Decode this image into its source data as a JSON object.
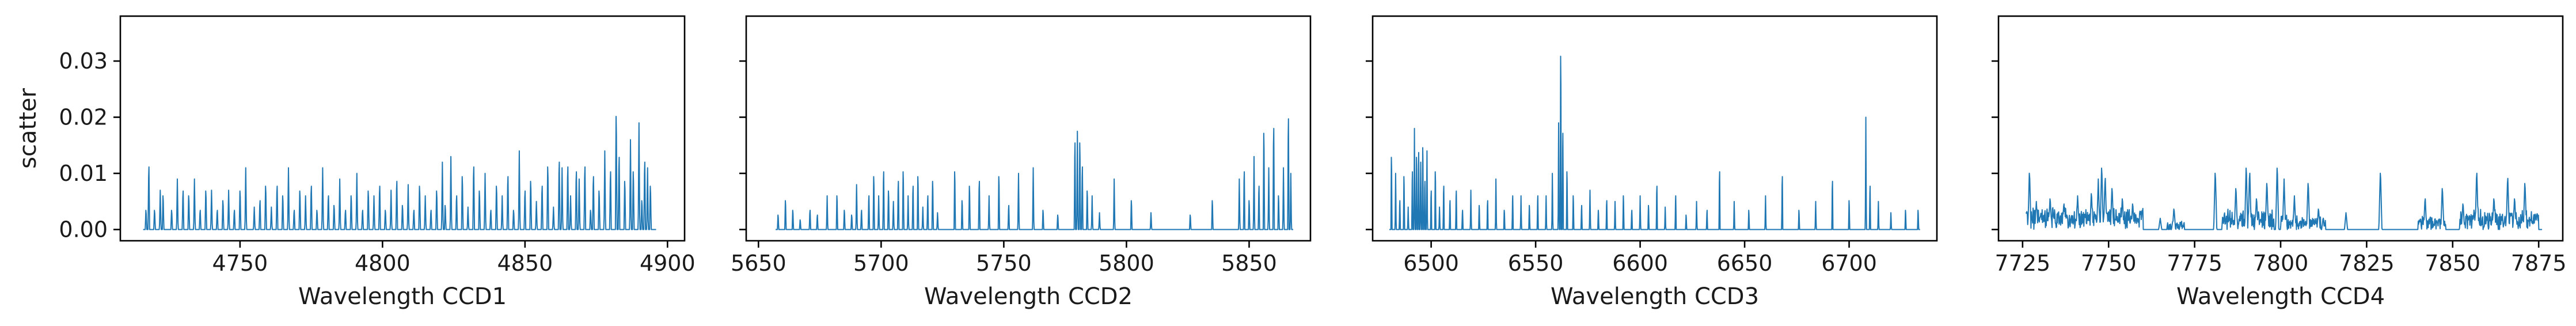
{
  "chart_data": {
    "type": "line",
    "shared_y": true,
    "ylabel": "scatter",
    "ylim": [
      -0.002,
      0.038
    ],
    "yticks": [
      0.0,
      0.01,
      0.02,
      0.03
    ],
    "ytick_labels": [
      "0.00",
      "0.01",
      "0.02",
      "0.03"
    ],
    "line_color": "#1f77b4",
    "grid": false,
    "panels": [
      {
        "xlabel": "Wavelength CCD1",
        "xlim": [
          4708,
          4906
        ],
        "xticks": [
          4750,
          4800,
          4850,
          4900
        ],
        "xtick_labels": [
          "4750",
          "4800",
          "4850",
          "4900"
        ],
        "x_range": [
          4716,
          4896
        ],
        "baseline": 0.0,
        "peaks": [
          [
            4717,
            0.004
          ],
          [
            4718,
            0.013
          ],
          [
            4720,
            0.004
          ],
          [
            4722,
            0.007
          ],
          [
            4723,
            0.007
          ],
          [
            4726,
            0.004
          ],
          [
            4728,
            0.009
          ],
          [
            4730,
            0.008
          ],
          [
            4732,
            0.007
          ],
          [
            4734,
            0.009
          ],
          [
            4736,
            0.004
          ],
          [
            4738,
            0.008
          ],
          [
            4740,
            0.007
          ],
          [
            4742,
            0.004
          ],
          [
            4744,
            0.006
          ],
          [
            4746,
            0.007
          ],
          [
            4748,
            0.004
          ],
          [
            4750,
            0.008
          ],
          [
            4752,
            0.011
          ],
          [
            4755,
            0.004
          ],
          [
            4757,
            0.006
          ],
          [
            4759,
            0.009
          ],
          [
            4761,
            0.004
          ],
          [
            4763,
            0.009
          ],
          [
            4765,
            0.007
          ],
          [
            4767,
            0.011
          ],
          [
            4769,
            0.004
          ],
          [
            4771,
            0.008
          ],
          [
            4773,
            0.006
          ],
          [
            4775,
            0.009
          ],
          [
            4777,
            0.004
          ],
          [
            4779,
            0.011
          ],
          [
            4781,
            0.007
          ],
          [
            4783,
            0.005
          ],
          [
            4785,
            0.009
          ],
          [
            4787,
            0.004
          ],
          [
            4789,
            0.007
          ],
          [
            4791,
            0.01
          ],
          [
            4793,
            0.004
          ],
          [
            4795,
            0.008
          ],
          [
            4797,
            0.006
          ],
          [
            4799,
            0.009
          ],
          [
            4801,
            0.004
          ],
          [
            4803,
            0.007
          ],
          [
            4805,
            0.01
          ],
          [
            4807,
            0.005
          ],
          [
            4809,
            0.008
          ],
          [
            4811,
            0.004
          ],
          [
            4813,
            0.009
          ],
          [
            4815,
            0.006
          ],
          [
            4817,
            0.004
          ],
          [
            4819,
            0.008
          ],
          [
            4821,
            0.012
          ],
          [
            4822,
            0.005
          ],
          [
            4824,
            0.013
          ],
          [
            4826,
            0.007
          ],
          [
            4828,
            0.011
          ],
          [
            4830,
            0.004
          ],
          [
            4832,
            0.013
          ],
          [
            4834,
            0.008
          ],
          [
            4836,
            0.01
          ],
          [
            4838,
            0.004
          ],
          [
            4840,
            0.009
          ],
          [
            4842,
            0.006
          ],
          [
            4844,
            0.011
          ],
          [
            4846,
            0.004
          ],
          [
            4848,
            0.014
          ],
          [
            4850,
            0.008
          ],
          [
            4852,
            0.01
          ],
          [
            4854,
            0.005
          ],
          [
            4856,
            0.009
          ],
          [
            4858,
            0.013
          ],
          [
            4860,
            0.004
          ],
          [
            4862,
            0.014
          ],
          [
            4863,
            0.011
          ],
          [
            4865,
            0.013
          ],
          [
            4866,
            0.006
          ],
          [
            4868,
            0.012
          ],
          [
            4869,
            0.009
          ],
          [
            4871,
            0.013
          ],
          [
            4873,
            0.004
          ],
          [
            4874,
            0.011
          ],
          [
            4876,
            0.008
          ],
          [
            4878,
            0.014
          ],
          [
            4880,
            0.012
          ],
          [
            4882,
            0.0235
          ],
          [
            4883,
            0.015
          ],
          [
            4885,
            0.01
          ],
          [
            4887,
            0.016
          ],
          [
            4888,
            0.012
          ],
          [
            4890,
            0.019
          ],
          [
            4891,
            0.006
          ],
          [
            4892,
            0.014
          ],
          [
            4893,
            0.011
          ],
          [
            4894,
            0.009
          ]
        ]
      },
      {
        "xlabel": "Wavelength CCD2",
        "xlim": [
          5645,
          5875
        ],
        "xticks": [
          5650,
          5700,
          5750,
          5800,
          5850
        ],
        "xtick_labels": [
          "5650",
          "5700",
          "5750",
          "5800",
          "5850"
        ],
        "x_range": [
          5657,
          5868
        ],
        "baseline": 0.0,
        "peaks": [
          [
            5658,
            0.003
          ],
          [
            5661,
            0.006
          ],
          [
            5664,
            0.004
          ],
          [
            5667,
            0.002
          ],
          [
            5671,
            0.004
          ],
          [
            5674,
            0.003
          ],
          [
            5678,
            0.006
          ],
          [
            5682,
            0.007
          ],
          [
            5685,
            0.004
          ],
          [
            5688,
            0.003
          ],
          [
            5690,
            0.008
          ],
          [
            5692,
            0.004
          ],
          [
            5695,
            0.007
          ],
          [
            5697,
            0.011
          ],
          [
            5699,
            0.006
          ],
          [
            5701,
            0.012
          ],
          [
            5703,
            0.008
          ],
          [
            5705,
            0.005
          ],
          [
            5707,
            0.01
          ],
          [
            5709,
            0.012
          ],
          [
            5711,
            0.006
          ],
          [
            5713,
            0.009
          ],
          [
            5715,
            0.011
          ],
          [
            5717,
            0.004
          ],
          [
            5719,
            0.007
          ],
          [
            5721,
            0.01
          ],
          [
            5723,
            0.003
          ],
          [
            5730,
            0.012
          ],
          [
            5733,
            0.006
          ],
          [
            5736,
            0.009
          ],
          [
            5740,
            0.01
          ],
          [
            5744,
            0.006
          ],
          [
            5748,
            0.011
          ],
          [
            5752,
            0.005
          ],
          [
            5756,
            0.01
          ],
          [
            5762,
            0.011
          ],
          [
            5766,
            0.004
          ],
          [
            5772,
            0.003
          ],
          [
            5779,
            0.018
          ],
          [
            5780,
            0.0175
          ],
          [
            5781,
            0.018
          ],
          [
            5782,
            0.013
          ],
          [
            5784,
            0.008
          ],
          [
            5786,
            0.006
          ],
          [
            5789,
            0.003
          ],
          [
            5795,
            0.009
          ],
          [
            5802,
            0.006
          ],
          [
            5810,
            0.003
          ],
          [
            5826,
            0.003
          ],
          [
            5835,
            0.006
          ],
          [
            5846,
            0.009
          ],
          [
            5848,
            0.012
          ],
          [
            5850,
            0.006
          ],
          [
            5852,
            0.013
          ],
          [
            5854,
            0.009
          ],
          [
            5856,
            0.02
          ],
          [
            5858,
            0.011
          ],
          [
            5860,
            0.021
          ],
          [
            5862,
            0.007
          ],
          [
            5864,
            0.011
          ],
          [
            5866,
            0.023
          ],
          [
            5867,
            0.01
          ]
        ]
      },
      {
        "xlabel": "Wavelength CCD3",
        "xlim": [
          6472,
          6742
        ],
        "xticks": [
          6500,
          6550,
          6600,
          6650,
          6700
        ],
        "xtick_labels": [
          "6500",
          "6550",
          "6600",
          "6650",
          "6700"
        ],
        "x_range": [
          6480,
          6734
        ],
        "baseline": 0.0,
        "peaks": [
          [
            6481,
            0.015
          ],
          [
            6483,
            0.01
          ],
          [
            6485,
            0.006
          ],
          [
            6487,
            0.011
          ],
          [
            6489,
            0.004
          ],
          [
            6491,
            0.012
          ],
          [
            6492,
            0.018
          ],
          [
            6493,
            0.015
          ],
          [
            6494,
            0.016
          ],
          [
            6495,
            0.012
          ],
          [
            6496,
            0.017
          ],
          [
            6497,
            0.01
          ],
          [
            6498,
            0.014
          ],
          [
            6500,
            0.008
          ],
          [
            6502,
            0.012
          ],
          [
            6504,
            0.004
          ],
          [
            6506,
            0.009
          ],
          [
            6509,
            0.006
          ],
          [
            6512,
            0.008
          ],
          [
            6515,
            0.004
          ],
          [
            6519,
            0.007
          ],
          [
            6523,
            0.005
          ],
          [
            6527,
            0.006
          ],
          [
            6531,
            0.009
          ],
          [
            6535,
            0.004
          ],
          [
            6539,
            0.007
          ],
          [
            6543,
            0.006
          ],
          [
            6547,
            0.005
          ],
          [
            6551,
            0.007
          ],
          [
            6555,
            0.006
          ],
          [
            6558,
            0.01
          ],
          [
            6561,
            0.019
          ],
          [
            6562,
            0.036
          ],
          [
            6563,
            0.02
          ],
          [
            6565,
            0.012
          ],
          [
            6568,
            0.007
          ],
          [
            6572,
            0.005
          ],
          [
            6576,
            0.007
          ],
          [
            6580,
            0.004
          ],
          [
            6584,
            0.006
          ],
          [
            6588,
            0.005
          ],
          [
            6592,
            0.007
          ],
          [
            6596,
            0.004
          ],
          [
            6600,
            0.006
          ],
          [
            6604,
            0.005
          ],
          [
            6608,
            0.009
          ],
          [
            6612,
            0.004
          ],
          [
            6617,
            0.007
          ],
          [
            6622,
            0.003
          ],
          [
            6627,
            0.005
          ],
          [
            6632,
            0.004
          ],
          [
            6638,
            0.012
          ],
          [
            6645,
            0.005
          ],
          [
            6652,
            0.004
          ],
          [
            6660,
            0.006
          ],
          [
            6668,
            0.011
          ],
          [
            6676,
            0.004
          ],
          [
            6684,
            0.005
          ],
          [
            6692,
            0.01
          ],
          [
            6700,
            0.006
          ],
          [
            6708,
            0.02
          ],
          [
            6710,
            0.009
          ],
          [
            6714,
            0.005
          ],
          [
            6720,
            0.003
          ],
          [
            6727,
            0.004
          ],
          [
            6733,
            0.004
          ]
        ]
      },
      {
        "xlabel": "Wavelength CCD4",
        "xlim": [
          7718,
          7882
        ],
        "xticks": [
          7725,
          7750,
          7775,
          7800,
          7825,
          7850,
          7875
        ],
        "xtick_labels": [
          "7725",
          "7750",
          "7775",
          "7800",
          "7825",
          "7850",
          "7875"
        ],
        "x_range": [
          7726,
          7876
        ],
        "baseline": 0.0,
        "continuum": [
          [
            7726,
            7760,
            0.0035,
            0.0015
          ],
          [
            7767,
            7772,
            0.0012,
            0.0008
          ],
          [
            7783,
            7798,
            0.003,
            0.0015
          ],
          [
            7800,
            7813,
            0.002,
            0.0012
          ],
          [
            7840,
            7848,
            0.002,
            0.001
          ],
          [
            7852,
            7875,
            0.003,
            0.0015
          ]
        ],
        "peaks": [
          [
            7727,
            0.011
          ],
          [
            7729,
            0.005
          ],
          [
            7733,
            0.006
          ],
          [
            7737,
            0.005
          ],
          [
            7741,
            0.006
          ],
          [
            7745,
            0.007
          ],
          [
            7747,
            0.009
          ],
          [
            7748,
            0.012
          ],
          [
            7749,
            0.01
          ],
          [
            7751,
            0.008
          ],
          [
            7754,
            0.006
          ],
          [
            7757,
            0.005
          ],
          [
            7765,
            0.002
          ],
          [
            7769,
            0.004
          ],
          [
            7781,
            0.011
          ],
          [
            7787,
            0.008
          ],
          [
            7790,
            0.012
          ],
          [
            7791,
            0.011
          ],
          [
            7793,
            0.006
          ],
          [
            7796,
            0.009
          ],
          [
            7799,
            0.012
          ],
          [
            7801,
            0.009
          ],
          [
            7804,
            0.006
          ],
          [
            7808,
            0.009
          ],
          [
            7811,
            0.004
          ],
          [
            7819,
            0.003
          ],
          [
            7829,
            0.011
          ],
          [
            7842,
            0.006
          ],
          [
            7847,
            0.008
          ],
          [
            7853,
            0.005
          ],
          [
            7857,
            0.011
          ],
          [
            7862,
            0.006
          ],
          [
            7866,
            0.01
          ],
          [
            7868,
            0.006
          ],
          [
            7871,
            0.009
          ],
          [
            7874,
            0.003
          ]
        ]
      }
    ]
  }
}
